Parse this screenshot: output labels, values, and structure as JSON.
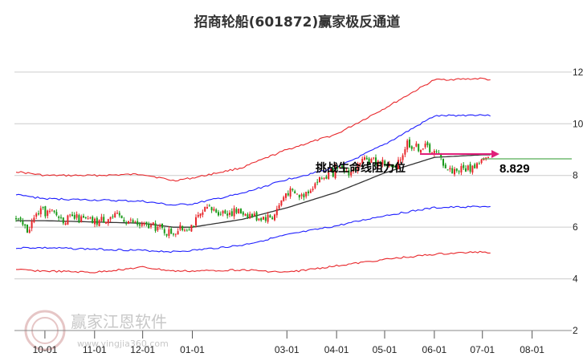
{
  "chart_data": {
    "type": "candlestick",
    "title": "招商轮船(601872)赢家极反通道",
    "x_ticks": [
      "10-01",
      "11-01",
      "12-01",
      "01-01",
      "03-01",
      "04-01",
      "05-01",
      "06-01",
      "07-01",
      "08-01"
    ],
    "y_ticks": [
      "12",
      "10",
      "8",
      "6",
      "4",
      "2"
    ],
    "ylim": [
      2,
      13.3
    ],
    "grid": true,
    "annotation": {
      "text": "挑战生命线阻力位",
      "value": 8.829,
      "value_label": "8.829"
    },
    "watermark": {
      "cn": "赢家江恩软件",
      "url": "www.yingjia360.com"
    },
    "price_path": [
      [
        "09-13",
        6.3
      ],
      [
        "09-20",
        5.9
      ],
      [
        "09-27",
        6.6
      ],
      [
        "10-06",
        6.55
      ],
      [
        "10-13",
        6.3
      ],
      [
        "10-20",
        6.35
      ],
      [
        "11-01",
        6.2
      ],
      [
        "11-10",
        6.4
      ],
      [
        "11-17",
        6.4
      ],
      [
        "11-24",
        6.2
      ],
      [
        "12-01",
        6.05
      ],
      [
        "12-10",
        6.0
      ],
      [
        "12-17",
        5.8
      ],
      [
        "12-24",
        5.9
      ],
      [
        "01-01",
        6.1
      ],
      [
        "01-10",
        6.7
      ],
      [
        "01-20",
        6.6
      ],
      [
        "02-01",
        6.6
      ],
      [
        "02-10",
        6.4
      ],
      [
        "02-20",
        6.4
      ],
      [
        "03-01",
        7.4
      ],
      [
        "03-10",
        7.2
      ],
      [
        "03-20",
        7.8
      ],
      [
        "04-01",
        8.2
      ],
      [
        "04-10",
        8.15
      ],
      [
        "04-20",
        8.6
      ],
      [
        "05-01",
        8.5
      ],
      [
        "05-08",
        8.2
      ],
      [
        "05-15",
        9.3
      ],
      [
        "05-20",
        9.1
      ],
      [
        "05-28",
        9.1
      ],
      [
        "06-04",
        8.75
      ],
      [
        "06-10",
        8.2
      ],
      [
        "06-17",
        8.25
      ],
      [
        "06-24",
        8.3
      ],
      [
        "07-01",
        8.6
      ],
      [
        "07-06",
        8.6
      ]
    ],
    "series": [
      {
        "name": "",
        "color": "#e8262a",
        "points": [
          [
            "09-13",
            8.15
          ],
          [
            "10-01",
            8.0
          ],
          [
            "11-01",
            8.0
          ],
          [
            "12-01",
            8.05
          ],
          [
            "12-20",
            7.8
          ],
          [
            "01-01",
            7.9
          ],
          [
            "02-01",
            8.3
          ],
          [
            "03-01",
            9.0
          ],
          [
            "04-01",
            9.6
          ],
          [
            "05-01",
            10.6
          ],
          [
            "06-01",
            11.7
          ],
          [
            "07-01",
            11.75
          ],
          [
            "07-06",
            11.7
          ]
        ]
      },
      {
        "name": "",
        "color": "#1f1fff",
        "points": [
          [
            "09-13",
            7.25
          ],
          [
            "10-01",
            7.1
          ],
          [
            "11-01",
            7.05
          ],
          [
            "12-01",
            7.0
          ],
          [
            "12-20",
            6.85
          ],
          [
            "01-01",
            6.9
          ],
          [
            "02-01",
            7.3
          ],
          [
            "03-01",
            7.85
          ],
          [
            "04-01",
            8.3
          ],
          [
            "05-01",
            9.2
          ],
          [
            "06-01",
            10.3
          ],
          [
            "07-01",
            10.35
          ],
          [
            "07-06",
            10.3
          ]
        ]
      },
      {
        "name": "",
        "color": "#333333",
        "points": [
          [
            "09-13",
            6.25
          ],
          [
            "10-01",
            6.25
          ],
          [
            "11-01",
            6.2
          ],
          [
            "12-01",
            6.15
          ],
          [
            "12-20",
            6.0
          ],
          [
            "01-01",
            6.0
          ],
          [
            "02-01",
            6.3
          ],
          [
            "03-01",
            6.75
          ],
          [
            "04-01",
            7.35
          ],
          [
            "05-01",
            8.1
          ],
          [
            "06-01",
            8.7
          ],
          [
            "07-01",
            8.8
          ],
          [
            "07-06",
            8.8
          ]
        ]
      },
      {
        "name": "",
        "color": "#1f1fff",
        "points": [
          [
            "09-13",
            5.2
          ],
          [
            "10-01",
            5.2
          ],
          [
            "11-01",
            5.15
          ],
          [
            "12-01",
            5.1
          ],
          [
            "12-20",
            5.05
          ],
          [
            "01-01",
            5.1
          ],
          [
            "02-01",
            5.3
          ],
          [
            "03-01",
            5.7
          ],
          [
            "04-01",
            6.05
          ],
          [
            "05-01",
            6.45
          ],
          [
            "06-01",
            6.75
          ],
          [
            "07-01",
            6.8
          ],
          [
            "07-06",
            6.8
          ]
        ]
      },
      {
        "name": "",
        "color": "#e8262a",
        "points": [
          [
            "09-13",
            4.35
          ],
          [
            "10-01",
            4.3
          ],
          [
            "11-01",
            4.25
          ],
          [
            "12-01",
            4.45
          ],
          [
            "12-20",
            4.3
          ],
          [
            "01-01",
            4.3
          ],
          [
            "02-01",
            4.35
          ],
          [
            "03-01",
            4.25
          ],
          [
            "04-01",
            4.5
          ],
          [
            "05-01",
            4.75
          ],
          [
            "06-01",
            4.95
          ],
          [
            "07-01",
            5.05
          ],
          [
            "07-06",
            5.0
          ]
        ]
      }
    ],
    "colors": {
      "up": "#e8262a",
      "down": "#1a9a1a",
      "arrow": "#e0207a",
      "grid": "#cccccc",
      "level_line": "#2a9a2a"
    }
  }
}
